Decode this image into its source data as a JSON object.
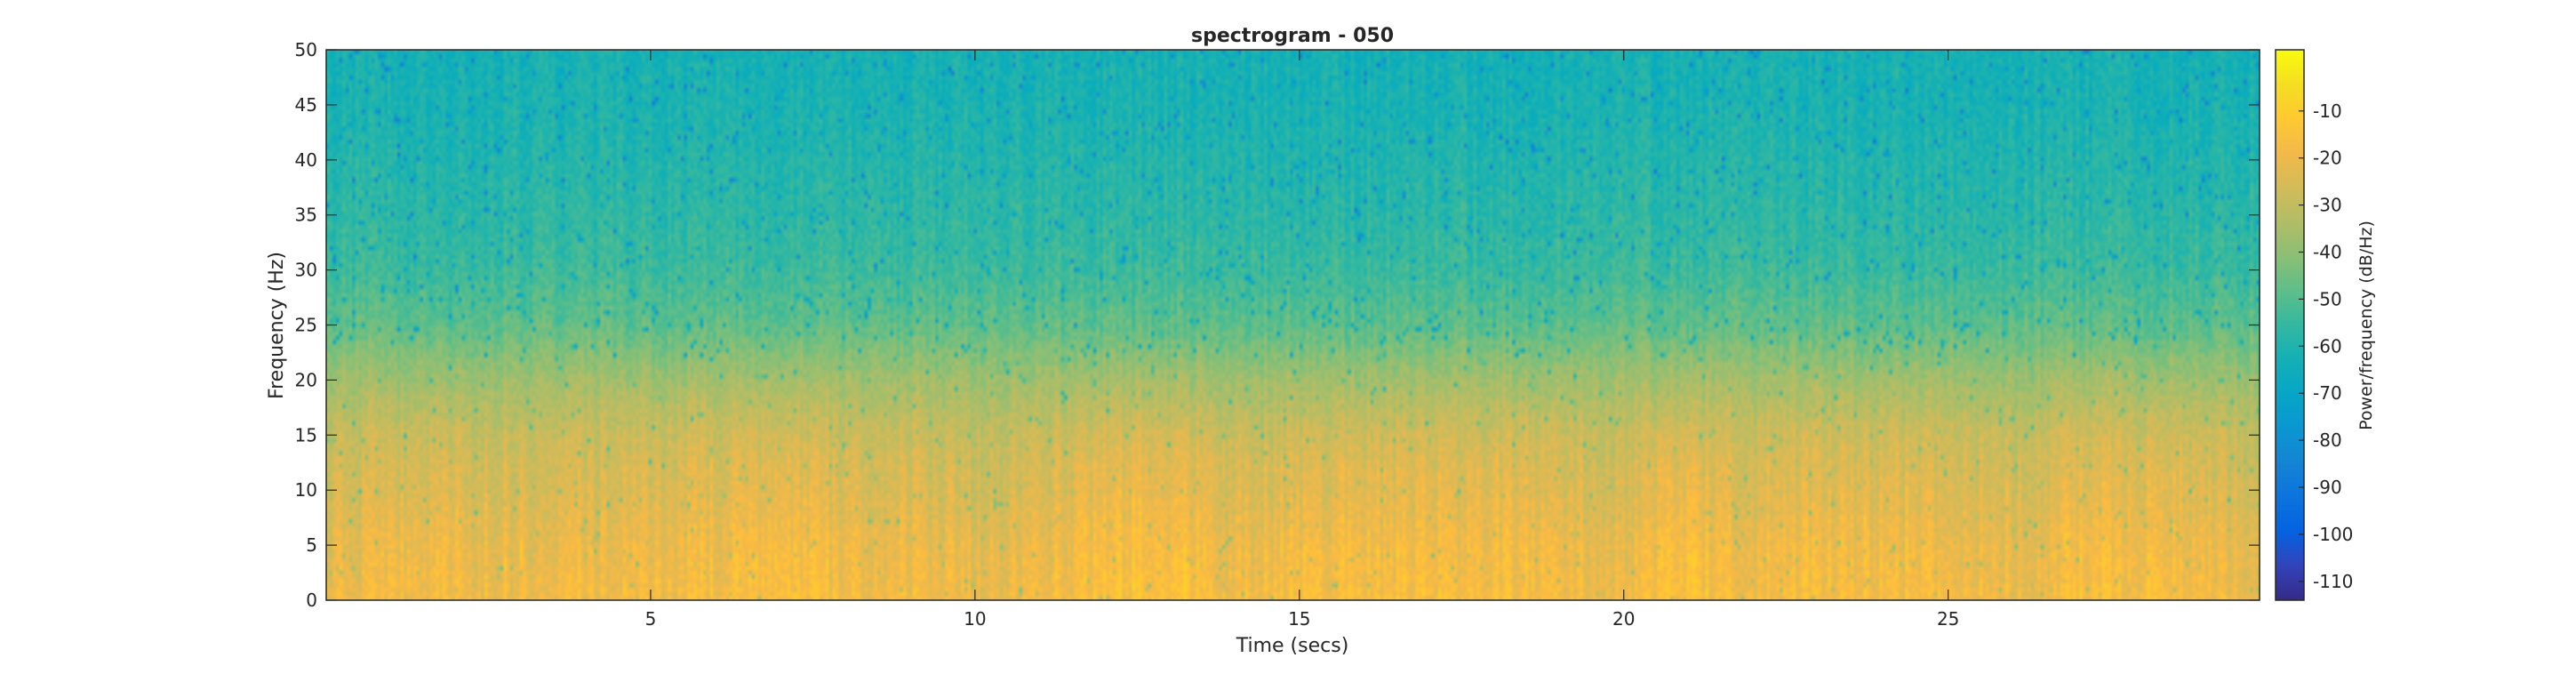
{
  "chart_data": {
    "type": "heatmap",
    "title": "spectrogram - 050",
    "xlabel": "Time (secs)",
    "ylabel": "Frequency (Hz)",
    "colorbar_label": "Power/frequency (dB/Hz)",
    "colormap": "parula",
    "xlim": [
      0,
      29.8
    ],
    "ylim": [
      0,
      50
    ],
    "clim": [
      -114,
      3
    ],
    "xticks": [
      5,
      10,
      15,
      20,
      25
    ],
    "yticks": [
      0,
      5,
      10,
      15,
      20,
      25,
      30,
      35,
      40,
      45,
      50
    ],
    "cticks": [
      -10,
      -20,
      -30,
      -40,
      -50,
      -60,
      -70,
      -80,
      -90,
      -100,
      -110
    ],
    "grid": false,
    "frequency_profile": {
      "frequency_hz": [
        0,
        5,
        10,
        15,
        20,
        25,
        30,
        35,
        40,
        45,
        50
      ],
      "typical_power_db_per_hz": [
        -22,
        -24,
        -28,
        -31,
        -38,
        -48,
        -54,
        -57,
        -59,
        -61,
        -62
      ]
    },
    "time_profile": {
      "time_secs": [
        0.5,
        2,
        4,
        6,
        8,
        10,
        12,
        12.8,
        14,
        16,
        18,
        20,
        20.8,
        22,
        24,
        26,
        27.5,
        29.5
      ],
      "low_band_power_offset_db": [
        2,
        4,
        3,
        5,
        4,
        2,
        6,
        9,
        3,
        6,
        5,
        3,
        8,
        4,
        5,
        3,
        7,
        2
      ]
    }
  }
}
